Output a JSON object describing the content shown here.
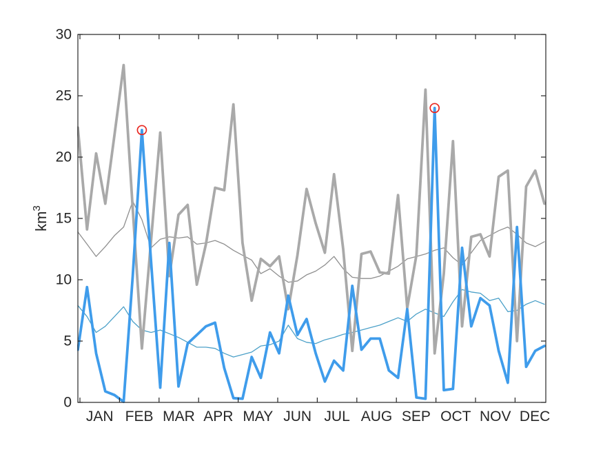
{
  "figure": {
    "background": "#ffffff",
    "axis_color": "#262626",
    "tick_label_color": "#262626"
  },
  "chart_data": {
    "type": "line",
    "x_unit": "weekly (52 points, JAN-DEC)",
    "n_points": 52,
    "title": "",
    "xlabel": "",
    "ylabel": "km",
    "ylabel_superscript": "3",
    "ylim": [
      0,
      30
    ],
    "yticks": [
      0,
      5,
      10,
      15,
      20,
      25,
      30
    ],
    "x_month_labels": [
      "JAN",
      "FEB",
      "MAR",
      "APR",
      "MAY",
      "JUN",
      "JUL",
      "AUG",
      "SEP",
      "OCT",
      "NOV",
      "DEC"
    ],
    "grid": false,
    "legend": "none",
    "series": [
      {
        "id": "thin-gray-line",
        "color": "#8f8f8f",
        "width": 1.3,
        "values": [
          13.9,
          12.9,
          11.9,
          12.7,
          13.6,
          14.3,
          16.4,
          14.9,
          12.6,
          13.3,
          13.5,
          13.4,
          13.5,
          12.9,
          13.0,
          13.2,
          12.9,
          12.4,
          12.0,
          11.6,
          10.5,
          10.9,
          10.3,
          9.8,
          9.9,
          10.4,
          10.7,
          11.2,
          11.9,
          10.9,
          10.2,
          10.1,
          10.1,
          10.3,
          10.7,
          11.1,
          11.7,
          11.9,
          12.1,
          12.4,
          12.6,
          11.8,
          11.2,
          12.2,
          13.2,
          13.6,
          14.0,
          14.3,
          13.7,
          13.0,
          12.7,
          13.1
        ]
      },
      {
        "id": "thin-blue-line",
        "color": "#4ba0c8",
        "width": 1.3,
        "values": [
          7.9,
          7.0,
          5.7,
          6.2,
          7.0,
          7.8,
          6.6,
          5.9,
          5.7,
          5.9,
          5.6,
          5.3,
          4.9,
          4.5,
          4.5,
          4.4,
          4.0,
          3.7,
          3.9,
          4.1,
          4.6,
          4.7,
          5.0,
          6.3,
          5.2,
          4.9,
          4.8,
          5.1,
          5.3,
          5.55,
          5.7,
          5.9,
          6.1,
          6.3,
          6.6,
          6.9,
          6.6,
          7.2,
          7.6,
          7.3,
          7.0,
          8.2,
          9.2,
          9.0,
          8.9,
          8.3,
          8.5,
          7.4,
          7.5,
          8.0,
          8.3,
          8.0
        ]
      },
      {
        "id": "thick-gray-line",
        "color": "#a9a9a9",
        "width": 3.8,
        "values": [
          22.4,
          14.1,
          20.3,
          16.2,
          21.8,
          27.5,
          15.8,
          4.4,
          13.2,
          22.0,
          10.3,
          15.3,
          16.1,
          9.6,
          12.9,
          17.5,
          17.3,
          24.3,
          13.0,
          8.3,
          11.7,
          11.1,
          11.9,
          7.6,
          12.0,
          17.4,
          14.6,
          12.2,
          18.6,
          12.5,
          4.2,
          12.1,
          12.3,
          10.6,
          10.5,
          16.9,
          7.7,
          12.0,
          25.5,
          4.0,
          10.5,
          21.3,
          6.2,
          13.5,
          13.7,
          11.9,
          18.4,
          18.9,
          5.0,
          17.6,
          18.9,
          16.2
        ]
      },
      {
        "id": "thick-blue-line",
        "color": "#3f9ceb",
        "width": 3.8,
        "values": [
          4.3,
          9.4,
          4.0,
          0.9,
          0.6,
          0.05,
          10.3,
          22.2,
          11.5,
          1.2,
          13.0,
          1.3,
          4.8,
          5.5,
          6.2,
          6.5,
          2.8,
          0.35,
          0.3,
          3.7,
          2.0,
          5.7,
          4.0,
          8.7,
          5.5,
          6.8,
          4.0,
          1.7,
          3.4,
          2.6,
          9.5,
          4.3,
          5.2,
          5.2,
          2.6,
          2.0,
          7.6,
          0.4,
          0.3,
          24.0,
          1.0,
          1.1,
          12.6,
          6.2,
          8.5,
          7.9,
          4.2,
          1.6,
          14.3,
          2.9,
          4.2,
          4.6
        ]
      }
    ],
    "highlights": {
      "series_id": "thick-blue-line",
      "indices": [
        7,
        39
      ],
      "marker": "open-circle",
      "color": "#e8261f",
      "values_marked": [
        22.2,
        24.0
      ]
    }
  }
}
